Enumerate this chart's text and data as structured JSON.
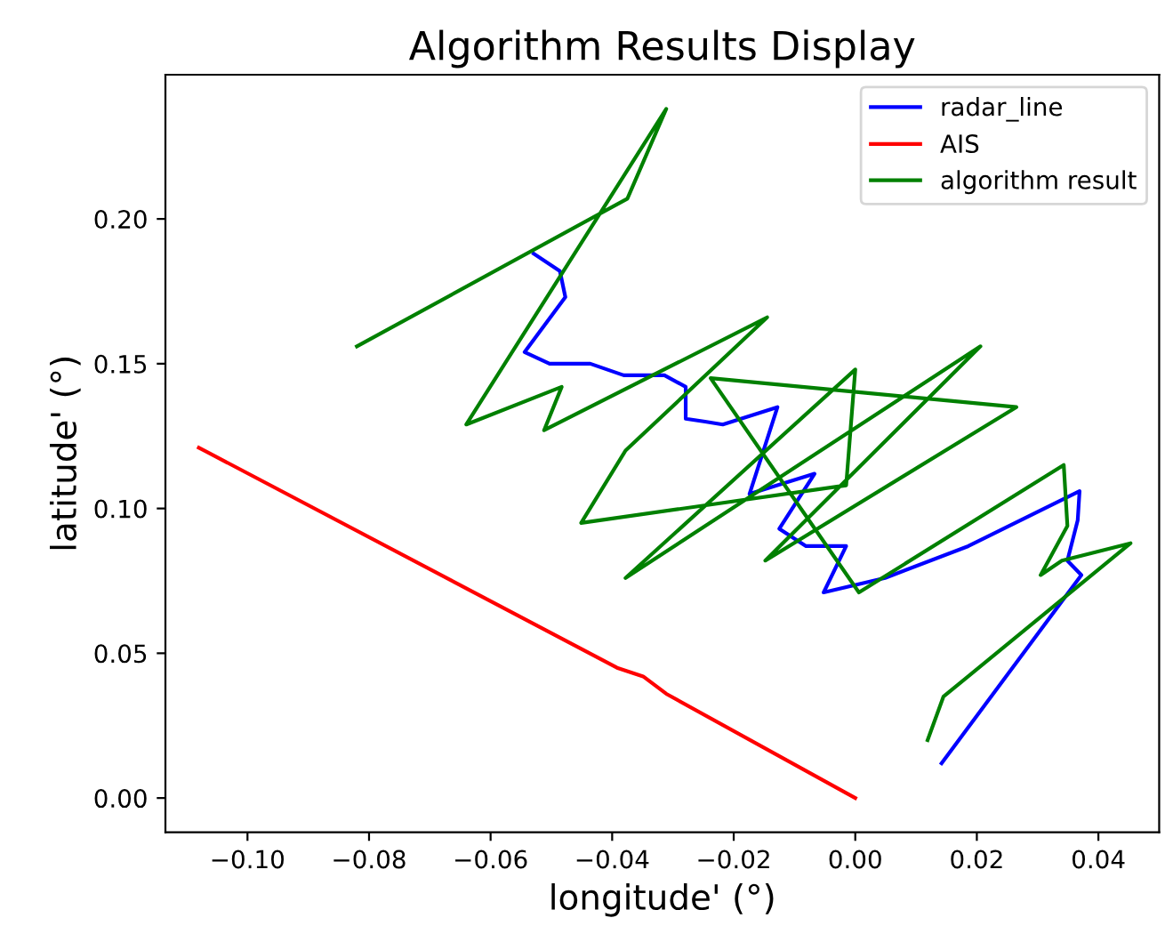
{
  "chart_data": {
    "type": "line",
    "title": "Algorithm Results Display",
    "xlabel": "longitude' (°)",
    "ylabel": "latitude' (°)",
    "xlim": [
      -0.1135,
      0.05
    ],
    "ylim": [
      -0.0118,
      0.2498
    ],
    "xticks": [
      {
        "value": -0.1,
        "label": "−0.10"
      },
      {
        "value": -0.08,
        "label": "−0.08"
      },
      {
        "value": -0.06,
        "label": "−0.06"
      },
      {
        "value": -0.04,
        "label": "−0.04"
      },
      {
        "value": -0.02,
        "label": "−0.02"
      },
      {
        "value": 0,
        "label": "0.00"
      },
      {
        "value": 0.02,
        "label": "0.02"
      },
      {
        "value": 0.04,
        "label": "0.04"
      }
    ],
    "yticks": [
      {
        "value": 0,
        "label": "0.00"
      },
      {
        "value": 0.05,
        "label": "0.05"
      },
      {
        "value": 0.1,
        "label": "0.10"
      },
      {
        "value": 0.15,
        "label": "0.15"
      },
      {
        "value": 0.2,
        "label": "0.20"
      }
    ],
    "legend": "top right",
    "grid": false,
    "marker": "none",
    "line_style": "solid",
    "series": [
      {
        "name": "radar_line",
        "color": "#0000ff",
        "x": [
          -0.0529,
          -0.0486,
          -0.0477,
          -0.0544,
          -0.0503,
          -0.0436,
          -0.0381,
          -0.0314,
          -0.0279,
          -0.0279,
          -0.0247,
          -0.0218,
          -0.0128,
          -0.0174,
          -0.0067,
          -0.0125,
          -0.0081,
          -0.0015,
          -0.0052,
          0.0049,
          0.0186,
          0.0369,
          0.0366,
          0.0349,
          0.0372,
          0.0142
        ],
        "values": [
          0.188,
          0.182,
          0.173,
          0.154,
          0.15,
          0.15,
          0.146,
          0.146,
          0.142,
          0.131,
          0.13,
          0.129,
          0.135,
          0.105,
          0.112,
          0.093,
          0.087,
          0.087,
          0.071,
          0.076,
          0.087,
          0.106,
          0.096,
          0.082,
          0.077,
          0.012
        ]
      },
      {
        "name": "AIS",
        "color": "#ff0000",
        "x": [
          -0.108,
          -0.0392,
          -0.0349,
          -0.0311,
          0.0
        ],
        "values": [
          0.121,
          0.045,
          0.042,
          0.036,
          0.0
        ]
      },
      {
        "name": "algorithm result",
        "color": "#008000",
        "x": [
          -0.082,
          -0.0375,
          -0.0311,
          -0.064,
          -0.0483,
          -0.0512,
          -0.0145,
          -0.0378,
          -0.0451,
          -0.0015,
          0.0,
          -0.0378,
          0.0206,
          -0.0148,
          0.0265,
          -0.0238,
          0.0006,
          0.0343,
          0.0349,
          0.0305,
          0.034,
          0.0453,
          0.0145,
          0.0119
        ],
        "values": [
          0.156,
          0.207,
          0.238,
          0.129,
          0.142,
          0.127,
          0.166,
          0.12,
          0.095,
          0.108,
          0.148,
          0.076,
          0.156,
          0.082,
          0.135,
          0.145,
          0.071,
          0.115,
          0.094,
          0.077,
          0.082,
          0.088,
          0.035,
          0.02
        ]
      }
    ]
  }
}
